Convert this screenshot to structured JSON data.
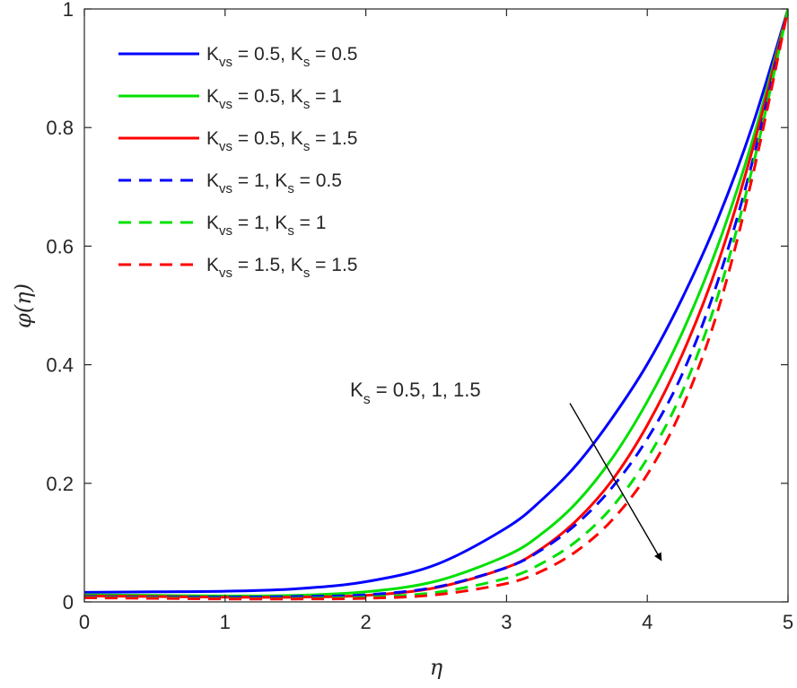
{
  "chart_data": {
    "type": "line",
    "xlabel": "η",
    "ylabel": "φ(η)",
    "xlim": [
      0,
      5
    ],
    "ylim": [
      0,
      1
    ],
    "x_ticks": [
      "0",
      "1",
      "2",
      "3",
      "4",
      "5"
    ],
    "y_ticks": [
      "0",
      "0.2",
      "0.4",
      "0.6",
      "0.8",
      "1"
    ],
    "grid": false,
    "legend_position": "top-left",
    "series": [
      {
        "name": "Kvs = 0.5, Ks = 0.5",
        "label": {
          "m1": "K",
          "s1": "vs",
          "m2": " = 0.5, K",
          "s2": "s",
          "m3": " = 0.5"
        },
        "color": "#0000ff",
        "dash": "solid",
        "x": [
          0,
          0.5,
          1,
          1.5,
          2,
          2.5,
          3,
          3.25,
          3.5,
          3.75,
          4,
          4.25,
          4.5,
          4.75,
          5
        ],
        "y": [
          0.016,
          0.017,
          0.018,
          0.022,
          0.034,
          0.063,
          0.125,
          0.172,
          0.232,
          0.31,
          0.401,
          0.513,
          0.645,
          0.805,
          1.0
        ]
      },
      {
        "name": "Kvs = 0.5, Ks = 1",
        "label": {
          "m1": "K",
          "s1": "vs",
          "m2": " = 0.5, K",
          "s2": "s",
          "m3": " = 1"
        },
        "color": "#00e000",
        "dash": "solid",
        "x": [
          0,
          0.5,
          1,
          1.5,
          2,
          2.5,
          3,
          3.25,
          3.5,
          3.75,
          4,
          4.25,
          4.5,
          4.75,
          5
        ],
        "y": [
          0.012,
          0.011,
          0.01,
          0.011,
          0.017,
          0.035,
          0.078,
          0.115,
          0.168,
          0.242,
          0.338,
          0.455,
          0.6,
          0.78,
          1.0
        ]
      },
      {
        "name": "Kvs = 0.5, Ks = 1.5",
        "label": {
          "m1": "K",
          "s1": "vs",
          "m2": " = 0.5, K",
          "s2": "s",
          "m3": " = 1.5"
        },
        "color": "#ff0000",
        "dash": "solid",
        "x": [
          0,
          0.5,
          1,
          1.5,
          2,
          2.5,
          3,
          3.25,
          3.5,
          3.75,
          4,
          4.25,
          4.5,
          4.75,
          5
        ],
        "y": [
          0.01,
          0.009,
          0.008,
          0.008,
          0.011,
          0.024,
          0.058,
          0.09,
          0.138,
          0.205,
          0.298,
          0.418,
          0.57,
          0.765,
          1.0
        ]
      },
      {
        "name": "Kvs = 1, Ks = 0.5",
        "label": {
          "m1": "K",
          "s1": "vs",
          "m2": " = 1, K",
          "s2": "s",
          "m3": " = 0.5"
        },
        "color": "#0000ff",
        "dash": "dashed",
        "x": [
          0,
          0.5,
          1,
          1.5,
          2,
          2.5,
          3,
          3.25,
          3.5,
          3.75,
          4,
          4.25,
          4.5,
          4.75,
          5
        ],
        "y": [
          0.009,
          0.008,
          0.008,
          0.009,
          0.012,
          0.025,
          0.058,
          0.088,
          0.132,
          0.193,
          0.275,
          0.385,
          0.54,
          0.745,
          1.0
        ]
      },
      {
        "name": "Kvs = 1, Ks = 1",
        "label": {
          "m1": "K",
          "s1": "vs",
          "m2": " = 1, K",
          "s2": "s",
          "m3": " = 1"
        },
        "color": "#00e000",
        "dash": "dashed",
        "x": [
          0,
          0.5,
          1,
          1.5,
          2,
          2.5,
          3,
          3.25,
          3.5,
          3.75,
          4,
          4.25,
          4.5,
          4.75,
          5
        ],
        "y": [
          0.008,
          0.007,
          0.006,
          0.006,
          0.008,
          0.016,
          0.04,
          0.065,
          0.103,
          0.16,
          0.242,
          0.355,
          0.515,
          0.735,
          1.0
        ]
      },
      {
        "name": "Kvs = 1.5, Ks = 1.5",
        "label": {
          "m1": "K",
          "s1": "vs",
          "m2": " = 1.5, K",
          "s2": "s",
          "m3": " = 1.5"
        },
        "color": "#ff0000",
        "dash": "dashed",
        "x": [
          0,
          0.5,
          1,
          1.5,
          2,
          2.5,
          3,
          3.25,
          3.5,
          3.75,
          4,
          4.25,
          4.5,
          4.75,
          5
        ],
        "y": [
          0.007,
          0.006,
          0.005,
          0.005,
          0.006,
          0.012,
          0.031,
          0.052,
          0.086,
          0.138,
          0.215,
          0.328,
          0.49,
          0.72,
          1.0
        ]
      }
    ],
    "annotation": {
      "text_main": "K",
      "text_sub": "s",
      "text_rest": " = 0.5, 1, 1.5",
      "arrow_from": [
        3.45,
        0.335
      ],
      "arrow_to": [
        4.1,
        0.07
      ]
    }
  }
}
